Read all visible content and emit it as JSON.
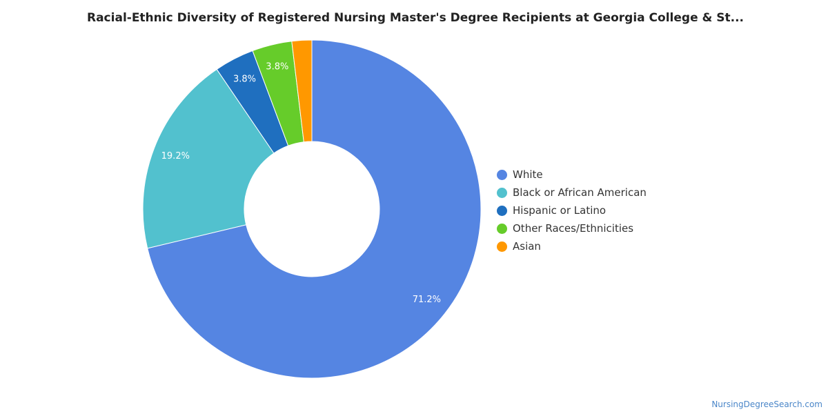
{
  "title": "Racial-Ethnic Diversity of Registered Nursing Master's Degree Recipients at Georgia College & St...",
  "source_link": "NursingDegreeSearch.com",
  "chart_data": {
    "type": "pie",
    "donut": true,
    "title": "Racial-Ethnic Diversity of Registered Nursing Master's Degree Recipients at Georgia College & St...",
    "legend_position": "right",
    "slices": [
      {
        "label": "White",
        "value": 71.2,
        "value_label": "71.2%",
        "color": "#5585e2"
      },
      {
        "label": "Black or African American",
        "value": 19.2,
        "value_label": "19.2%",
        "color": "#52c1ce"
      },
      {
        "label": "Hispanic or Latino",
        "value": 3.8,
        "value_label": "3.8%",
        "color": "#1f6fbf"
      },
      {
        "label": "Other Races/Ethnicities",
        "value": 3.8,
        "value_label": "3.8%",
        "color": "#66cc2a"
      },
      {
        "label": "Asian",
        "value": 1.9,
        "value_label": "",
        "color": "#ff9800"
      }
    ]
  }
}
